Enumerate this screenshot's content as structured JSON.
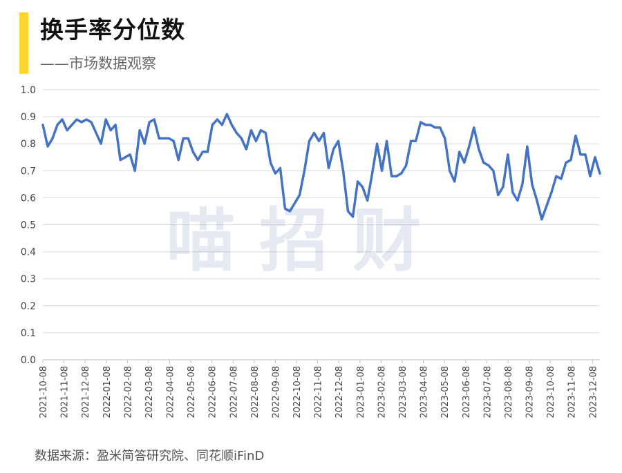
{
  "header": {
    "title": "换手率分位数",
    "subtitle": "——市场数据观察",
    "accent_color": "#FFD530"
  },
  "footer": {
    "source": "数据来源：盈米简答研究院、同花顺iFinD"
  },
  "watermark": {
    "text": "喵 招 财"
  },
  "chart_data": {
    "type": "line",
    "title": "换手率分位数",
    "subtitle": "——市场数据观察",
    "ylim": [
      0,
      1.0
    ],
    "yticks": [
      "0.0",
      "0.1",
      "0.2",
      "0.3",
      "0.4",
      "0.5",
      "0.6",
      "0.7",
      "0.8",
      "0.9",
      "1.0"
    ],
    "xticks": [
      "2021-10-08",
      "2021-11-08",
      "2021-12-08",
      "2022-01-08",
      "2022-02-08",
      "2022-03-08",
      "2022-04-08",
      "2022-05-08",
      "2022-06-08",
      "2022-07-08",
      "2022-08-08",
      "2022-09-08",
      "2022-10-08",
      "2022-11-08",
      "2022-12-08",
      "2023-01-08",
      "2023-02-08",
      "2023-03-08",
      "2023-04-08",
      "2023-05-08",
      "2023-06-08",
      "2023-07-08",
      "2023-08-08",
      "2023-09-08",
      "2023-10-08",
      "2023-11-08",
      "2023-12-08"
    ],
    "grid": true,
    "line_color": "#4472C4",
    "series": [
      {
        "values": [
          0.87,
          0.79,
          0.82,
          0.87,
          0.89,
          0.85,
          0.87,
          0.89,
          0.88,
          0.89,
          0.88,
          0.84,
          0.8,
          0.89,
          0.85,
          0.87,
          0.74,
          0.75,
          0.76,
          0.7,
          0.85,
          0.8,
          0.88,
          0.89,
          0.82,
          0.82,
          0.82,
          0.81,
          0.74,
          0.82,
          0.82,
          0.77,
          0.74,
          0.77,
          0.77,
          0.87,
          0.89,
          0.87,
          0.91,
          0.87,
          0.84,
          0.82,
          0.78,
          0.85,
          0.81,
          0.85,
          0.84,
          0.73,
          0.69,
          0.71,
          0.56,
          0.55,
          0.58,
          0.61,
          0.7,
          0.81,
          0.84,
          0.81,
          0.84,
          0.71,
          0.78,
          0.81,
          0.7,
          0.55,
          0.53,
          0.66,
          0.64,
          0.59,
          0.69,
          0.8,
          0.7,
          0.81,
          0.68,
          0.68,
          0.69,
          0.72,
          0.81,
          0.81,
          0.88,
          0.87,
          0.87,
          0.86,
          0.86,
          0.82,
          0.7,
          0.66,
          0.77,
          0.73,
          0.79,
          0.86,
          0.78,
          0.73,
          0.72,
          0.7,
          0.61,
          0.64,
          0.76,
          0.62,
          0.59,
          0.65,
          0.79,
          0.65,
          0.59,
          0.52,
          0.57,
          0.62,
          0.68,
          0.67,
          0.73,
          0.74,
          0.83,
          0.76,
          0.76,
          0.68,
          0.75,
          0.69
        ]
      }
    ]
  }
}
